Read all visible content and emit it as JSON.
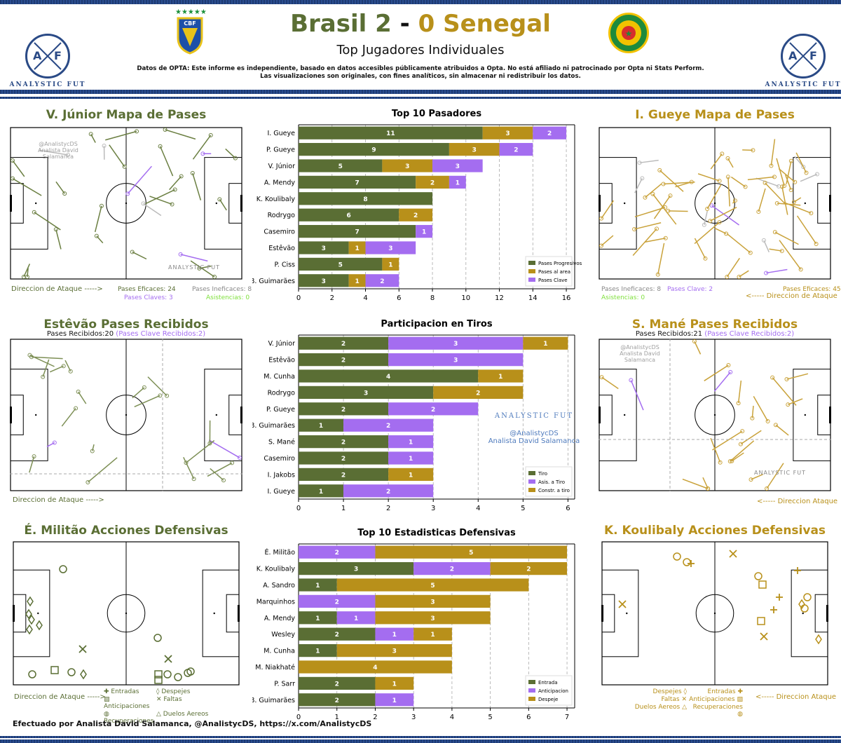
{
  "header": {
    "title_home": "Brasil 2",
    "title_dash": "-",
    "title_away": "0 Senegal",
    "subtitle": "Top Jugadores Individuales",
    "disclaimer1": "Datos de OPTA: Este informe es independiente, basado en datos accesibles públicamente atribuidos a Opta. No está afiliado ni patrocinado por Opta ni Stats Perform.",
    "disclaimer2": "Las visualizaciones son originales, con fines analíticos, sin almacenar ni redistribuir los datos.",
    "brand": "ANALYSTIC FUT",
    "cbf": "CBF"
  },
  "colors": {
    "green": "#5a6e34",
    "gold": "#b8901a",
    "purple": "#a46df0",
    "lime": "#7fe03c",
    "navy": "#2a4a86"
  },
  "panels": {
    "vj": {
      "title": "V. Júnior Mapa de Pases",
      "watermark1": "@AnalistycDS",
      "watermark2": "Analista David Salamanca",
      "brand": "ANALYSTIC FUT",
      "direction": "Direccion de Ataque ----->",
      "eff": "Pases Eficaces: 24",
      "ineff": "Pases Ineficaces: 8",
      "key": "Pases Claves: 3",
      "assist": "Asistencias: 0"
    },
    "ig": {
      "title": "I. Gueye Mapa de Pases",
      "ineff": "Pases Ineficaces: 8",
      "key": "Pases Clave: 2",
      "eff": "Pases Eficaces: 45",
      "assist": "Asistencias: 0",
      "direction": "<----- Direccion de Ataque"
    },
    "es": {
      "title": "Estêvão Pases Recibidos",
      "received": "Pases Recibidos:20",
      "key_received": "(Pases Clave Recibidos:2)",
      "direction": "Direccion de Ataque ----->"
    },
    "sm": {
      "title": "S. Mané Pases Recibidos",
      "received": "Pases Recibidos:21",
      "key_received": "(Pases Clave Recibidos:2)",
      "watermark1": "@AnalistycDS",
      "watermark2": "Analista David Salamanca",
      "brand": "ANALYSTIC FUT",
      "direction": "<----- Direccion Ataque"
    },
    "em": {
      "title": "É. Militão Acciones Defensivas",
      "direction": "Direccion de Ataque ----->",
      "legend": [
        "Entradas",
        "Despejes",
        "Anticipaciones",
        "Faltas",
        "Recuperaciones",
        "Duelos Aereos"
      ]
    },
    "kk": {
      "title": "K. Koulibaly Acciones Defensivas",
      "direction": "<----- Direccion Ataque",
      "legend": [
        "Despejes",
        "Entradas",
        "Faltas",
        "Anticipaciones",
        "Duelos Aereos",
        "Recuperaciones"
      ]
    }
  },
  "center_watermark": {
    "brand": "ANALYSTIC FUT",
    "handle": "@AnalistycDS",
    "name": "Analista David Salamanca"
  },
  "footer": "Efectuado por Analista David Salamanca, @AnalistycDS, https://x.com/AnalistycDS",
  "chart_data": [
    {
      "type": "bar",
      "orientation": "horizontal",
      "stacked": true,
      "title": "Top 10 Pasadores",
      "categories": [
        "I. Gueye",
        "P. Gueye",
        "V. Júnior",
        "A. Mendy",
        "K. Koulibaly",
        "Rodrygo",
        "Casemiro",
        "Estêvão",
        "P. Ciss",
        "B. Guimarães"
      ],
      "series": [
        {
          "name": "Pases Progresivos",
          "color": "#5a6e34",
          "values": [
            11,
            9,
            5,
            7,
            8,
            6,
            7,
            3,
            5,
            3
          ]
        },
        {
          "name": "Pases al area",
          "color": "#b8901a",
          "values": [
            3,
            3,
            3,
            2,
            0,
            2,
            0,
            1,
            1,
            1
          ]
        },
        {
          "name": "Pases Clave",
          "color": "#a46df0",
          "values": [
            2,
            2,
            3,
            1,
            0,
            0,
            1,
            3,
            0,
            2
          ]
        }
      ],
      "xlim": [
        0,
        16.5
      ],
      "xticks": [
        0,
        2,
        4,
        6,
        8,
        10,
        12,
        14,
        16
      ],
      "legend": "bottom-right"
    },
    {
      "type": "bar",
      "orientation": "horizontal",
      "stacked": true,
      "title": "Participacion en Tiros",
      "categories": [
        "V. Júnior",
        "Estêvão",
        "M. Cunha",
        "Rodrygo",
        "P. Gueye",
        "B. Guimarães",
        "S. Mané",
        "Casemiro",
        "I. Jakobs",
        "I. Gueye"
      ],
      "series": [
        {
          "name": "Tiro",
          "color": "#5a6e34",
          "values": [
            2,
            2,
            4,
            3,
            2,
            1,
            2,
            2,
            2,
            1
          ]
        },
        {
          "name": "Asis. a Tiro",
          "color": "#a46df0",
          "values": [
            3,
            3,
            0,
            0,
            2,
            2,
            1,
            1,
            0,
            2
          ]
        },
        {
          "name": "Constr. a tiro",
          "color": "#b8901a",
          "values": [
            1,
            0,
            1,
            2,
            0,
            0,
            0,
            0,
            1,
            0
          ]
        }
      ],
      "xlim": [
        0,
        6.15
      ],
      "xticks": [
        0,
        1,
        2,
        3,
        4,
        5,
        6
      ],
      "legend": "bottom-right"
    },
    {
      "type": "bar",
      "orientation": "horizontal",
      "stacked": true,
      "title": "Top 10 Estadisticas Defensivas",
      "categories": [
        "É. Militão",
        "K. Koulibaly",
        "A. Sandro",
        "Marquinhos",
        "A. Mendy",
        "Wesley",
        "M. Cunha",
        "M. Niakhaté",
        "P. Sarr",
        "B. Guimarães"
      ],
      "series": [
        {
          "name": "Entrada",
          "color": "#5a6e34",
          "values": [
            0,
            3,
            1,
            0,
            1,
            2,
            1,
            0,
            2,
            2
          ]
        },
        {
          "name": "Anticipacion",
          "color": "#a46df0",
          "values": [
            2,
            2,
            0,
            2,
            1,
            1,
            0,
            0,
            0,
            1
          ]
        },
        {
          "name": "Despeje",
          "color": "#b8901a",
          "values": [
            5,
            2,
            5,
            3,
            3,
            1,
            3,
            4,
            1,
            0
          ]
        }
      ],
      "xlim": [
        0,
        7.2
      ],
      "xticks": [
        0,
        1,
        2,
        3,
        4,
        5,
        6,
        7
      ],
      "legend": "bottom-right"
    }
  ]
}
